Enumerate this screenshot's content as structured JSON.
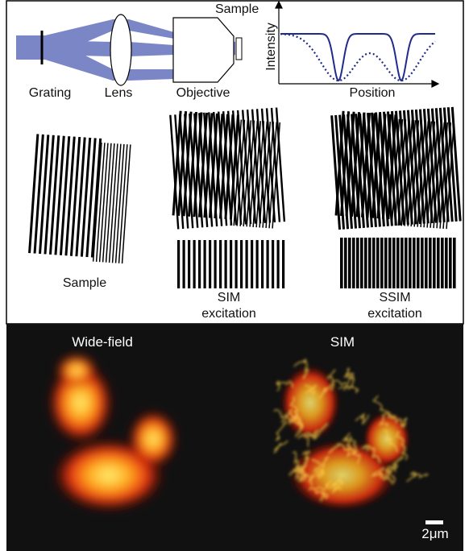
{
  "setup": {
    "sample": "Sample",
    "grating": "Grating",
    "lens": "Lens",
    "objective": "Objective"
  },
  "plot": {
    "y_label": "Intensity",
    "x_label": "Position"
  },
  "patterns": {
    "sample": "Sample",
    "sim": [
      "SIM",
      "excitation"
    ],
    "ssim": [
      "SSIM",
      "excitation"
    ]
  },
  "images": {
    "left_title": "Wide-field",
    "right_title": "SIM",
    "scale_bar": "2μm"
  }
}
